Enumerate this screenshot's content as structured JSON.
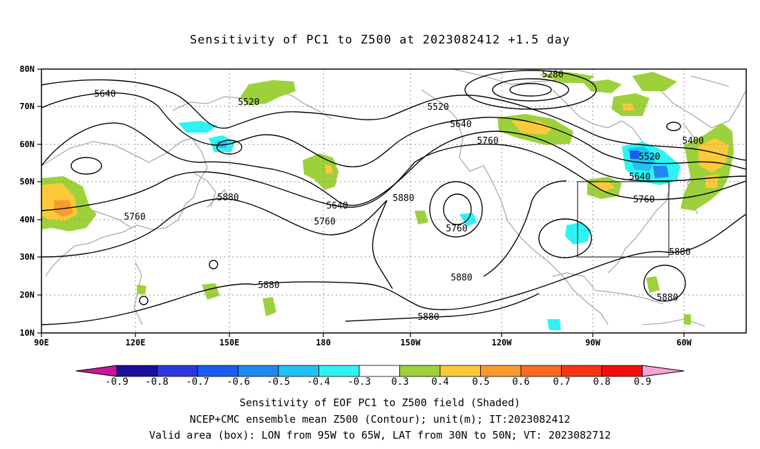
{
  "title": "Sensitivity of PC1 to Z500 at 2023082412 +1.5 day",
  "map": {
    "lat_labels": [
      "80N",
      "70N",
      "60N",
      "50N",
      "40N",
      "30N",
      "20N",
      "10N"
    ],
    "lon_labels": [
      "90E",
      "120E",
      "150E",
      "180",
      "150W",
      "120W",
      "90W",
      "60W"
    ],
    "valid_box": {
      "lon_west": "95W",
      "lon_east": "65W",
      "lat_south": "30N",
      "lat_north": "50N"
    },
    "contour_labels": [
      "5280",
      "5400",
      "5520",
      "5520",
      "5520",
      "5640",
      "5640",
      "5640",
      "5640",
      "5760",
      "5760",
      "5760",
      "5760",
      "5760",
      "5880",
      "5880",
      "5880",
      "5880",
      "5880",
      "5880",
      "5880"
    ]
  },
  "colorbar": {
    "labels": [
      "-0.9",
      "-0.8",
      "-0.7",
      "-0.6",
      "-0.5",
      "-0.4",
      "-0.3",
      "0.3",
      "0.4",
      "0.5",
      "0.6",
      "0.7",
      "0.8",
      "0.9"
    ],
    "colors": [
      "#1a0f9a",
      "#2a37dc",
      "#1a5df0",
      "#1f88ef",
      "#1ec3f2",
      "#2ff3f3",
      "#ffffff",
      "#9dd13b",
      "#fbc93a",
      "#f99b2c",
      "#fb6a20",
      "#f53414",
      "#f20e0c"
    ],
    "low_end_color": "#c8149e",
    "high_end_color": "#f5a4d6"
  },
  "captions": [
    "Sensitivity of EOF PC1 to Z500 field (Shaded)",
    "NCEP+CMC ensemble mean Z500 (Contour); unit(m); IT:2023082412",
    "Valid area (box): LON from 95W to 65W, LAT from 30N to 50N; VT: 2023082712"
  ]
}
